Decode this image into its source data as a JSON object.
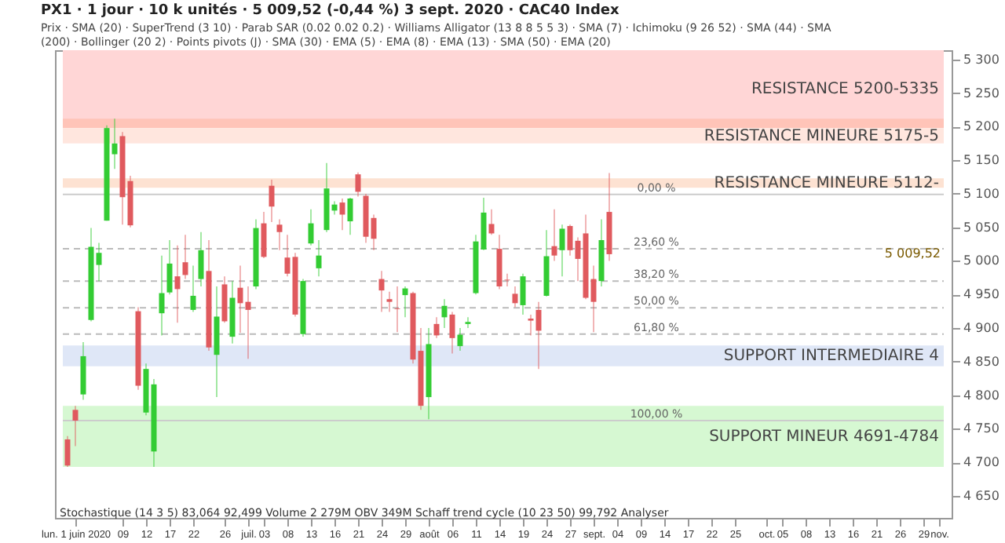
{
  "chart_data": {
    "type": "candlestick",
    "title": "PX1 · 1 jour · 10 k unités · 5 009,52 (-0,44 %) 3 sept. 2020 · CAC40 Index",
    "subtitle": "Prix · SMA (20) · SuperTrend (3 10) · Parab SAR (0.02 0.02 0.2) · Williams Alligator (13 8 8 5 5 3) · SMA (7) · Ichimoku (9 26 52) · SMA (44) · SMA (200) · Bollinger (20 2) · Points pivots (J) · SMA (30) · EMA (5) · EMA (8) · EMA (13) · SMA (50) · EMA (20)",
    "categories": [
      null,
      "lun. 1 juin 2020",
      null,
      null,
      null,
      null,
      null,
      "09",
      null,
      null,
      "12",
      null,
      null,
      "17",
      null,
      null,
      "22",
      null,
      null,
      null,
      "26",
      null,
      null,
      "juil.",
      null,
      "03",
      null,
      null,
      "08",
      null,
      null,
      "13",
      null,
      null,
      "16",
      null,
      null,
      "21",
      null,
      null,
      "24",
      null,
      null,
      "29",
      null,
      null,
      "août",
      null,
      null,
      "06",
      null,
      null,
      "11",
      null,
      null,
      "14",
      null,
      null,
      "19",
      null,
      null,
      "24",
      null,
      null,
      "27",
      null,
      null,
      "sept.",
      null,
      null,
      "04",
      null,
      null,
      "09",
      null,
      null,
      "14",
      null,
      null,
      "17",
      null,
      null,
      "22",
      null,
      null,
      "25",
      null,
      null,
      null,
      "oct.",
      null,
      "05",
      null,
      null,
      "08",
      null,
      null,
      "13",
      null,
      null,
      "16",
      null,
      null,
      "21",
      null,
      null,
      "26",
      null,
      null,
      "29",
      null,
      "nov."
    ],
    "ohlc": [
      [
        4734,
        4739,
        4693,
        4695
      ],
      [
        4778,
        4784,
        4724,
        4762
      ],
      [
        4801,
        4879,
        4793,
        4858
      ],
      [
        4912,
        5049,
        4910,
        5021
      ],
      [
        4994,
        5027,
        4970,
        5012
      ],
      [
        5060,
        5202,
        5060,
        5198
      ],
      [
        5159,
        5212,
        5137,
        5175
      ],
      [
        5186,
        5192,
        5054,
        5095
      ],
      [
        5119,
        5127,
        5050,
        5053
      ],
      [
        4925,
        4931,
        4808,
        4814
      ],
      [
        4774,
        4847,
        4770,
        4839
      ],
      [
        4716,
        4824,
        4693,
        4816
      ],
      [
        4922,
        5008,
        4889,
        4952
      ],
      [
        4953,
        5031,
        4950,
        4996
      ],
      [
        4977,
        5023,
        4908,
        4958
      ],
      [
        4998,
        5039,
        4973,
        4979
      ],
      [
        4927,
        4993,
        4924,
        4948
      ],
      [
        4973,
        5043,
        4962,
        5016
      ],
      [
        4985,
        5031,
        4866,
        4871
      ],
      [
        4860,
        4962,
        4797,
        4917
      ],
      [
        4965,
        4977,
        4908,
        4910
      ],
      [
        4887,
        4970,
        4877,
        4945
      ],
      [
        4960,
        4993,
        4893,
        4937
      ],
      [
        4939,
        4962,
        4854,
        4927
      ],
      [
        4962,
        5062,
        4958,
        5049
      ],
      [
        5056,
        5073,
        5004,
        5006
      ],
      [
        5112,
        5121,
        5058,
        5081
      ],
      [
        5054,
        5062,
        5016,
        5043
      ],
      [
        5005,
        5039,
        4977,
        4981
      ],
      [
        5006,
        5012,
        4917,
        4920
      ],
      [
        4891,
        4973,
        4887,
        4970
      ],
      [
        5026,
        5077,
        5023,
        5056
      ],
      [
        4989,
        5031,
        4977,
        5008
      ],
      [
        5046,
        5146,
        5043,
        5108
      ],
      [
        5075,
        5089,
        5069,
        5084
      ],
      [
        5087,
        5093,
        5046,
        5069
      ],
      [
        5059,
        5094,
        5039,
        5093
      ],
      [
        5129,
        5132,
        5096,
        5103
      ],
      [
        5097,
        5100,
        5027,
        5036
      ],
      [
        5064,
        5069,
        5016,
        5033
      ],
      [
        4973,
        4985,
        4924,
        4956
      ],
      [
        4943,
        4954,
        4924,
        4939
      ],
      [
        4929,
        4962,
        4894,
        4928
      ],
      [
        4949,
        4962,
        4916,
        4959
      ],
      [
        4952,
        4954,
        4847,
        4853
      ],
      [
        4866,
        4900,
        4778,
        4784
      ],
      [
        4797,
        4900,
        4764,
        4876
      ],
      [
        4906,
        4916,
        4885,
        4889
      ],
      [
        4916,
        4943,
        4900,
        4933
      ],
      [
        4920,
        4924,
        4862,
        4885
      ],
      [
        4873,
        4900,
        4866,
        4890
      ],
      [
        4906,
        4916,
        4900,
        4909
      ],
      [
        4952,
        5039,
        4950,
        5029
      ],
      [
        5017,
        5094,
        5016,
        5072
      ],
      [
        5055,
        5077,
        5039,
        5041
      ],
      [
        5018,
        5039,
        4958,
        4962
      ],
      [
        4972,
        4981,
        4962,
        4971
      ],
      [
        4951,
        4962,
        4931,
        4937
      ],
      [
        4934,
        4981,
        4920,
        4977
      ],
      [
        4914,
        4920,
        4889,
        4911
      ],
      [
        4927,
        4939,
        4839,
        4896
      ],
      [
        4948,
        5046,
        4947,
        5007
      ],
      [
        5022,
        5077,
        5000,
        5008
      ],
      [
        5016,
        5054,
        4977,
        5048
      ],
      [
        5052,
        5054,
        5008,
        5016
      ],
      [
        5030,
        5035,
        4970,
        5003
      ],
      [
        5041,
        5069,
        4943,
        4945
      ],
      [
        4973,
        4993,
        4894,
        4939
      ],
      [
        4970,
        5062,
        4962,
        5031
      ],
      [
        5073,
        5131,
        5000,
        5010
      ],
      null,
      null,
      null,
      null,
      null,
      null,
      null,
      null,
      null,
      null,
      null,
      null,
      null,
      null,
      null,
      null,
      null,
      null,
      null,
      null,
      null,
      null,
      null,
      null,
      null,
      null,
      null,
      null,
      null,
      null,
      null,
      null,
      null,
      null,
      null,
      null,
      null,
      null,
      null,
      null,
      null,
      null
    ],
    "colors": [
      "#e05a5e",
      "#e05a5e",
      "#33cc33",
      "#33cc33",
      "#33cc33",
      "#33cc33",
      "#33cc33",
      "#e05a5e",
      "#e05a5e",
      "#e05a5e",
      "#33cc33",
      "#33cc33",
      "#33cc33",
      "#33cc33",
      "#e05a5e",
      "#e05a5e",
      "#33cc33",
      "#33cc33",
      "#e05a5e",
      "#33cc33",
      "#e05a5e",
      "#33cc33",
      "#e05a5e",
      "#e05a5e",
      "#33cc33",
      "#e05a5e",
      "#e05a5e",
      "#e05a5e",
      "#e05a5e",
      "#e05a5e",
      "#33cc33",
      "#33cc33",
      "#33cc33",
      "#33cc33",
      "#33cc33",
      "#e05a5e",
      "#33cc33",
      "#e05a5e",
      "#e05a5e",
      "#e05a5e",
      "#e05a5e",
      "#e05a5e",
      "#e05a5e",
      "#33cc33",
      "#e05a5e",
      "#e05a5e",
      "#33cc33",
      "#e05a5e",
      "#33cc33",
      "#e05a5e",
      "#33cc33",
      "#33cc33",
      "#33cc33",
      "#33cc33",
      "#e05a5e",
      "#e05a5e",
      "#e05a5e",
      "#e05a5e",
      "#33cc33",
      "#e05a5e",
      "#e05a5e",
      "#33cc33",
      "#e05a5e",
      "#33cc33",
      "#e05a5e",
      "#e05a5e",
      "#e05a5e",
      "#e05a5e",
      "#33cc33",
      "#e05a5e",
      null,
      null,
      null,
      null,
      null,
      null,
      null,
      null,
      null,
      null,
      null,
      null,
      null,
      null,
      null,
      null,
      null,
      null,
      null,
      null,
      null,
      null,
      null,
      null,
      null,
      null,
      null,
      null,
      null,
      null,
      null,
      null,
      null,
      null,
      null,
      null,
      null,
      null,
      null,
      null,
      null,
      null
    ],
    "ylim": [
      4617,
      5314
    ],
    "yticks": [
      {
        "value": 4650,
        "label": "4 650"
      },
      {
        "value": 4700,
        "label": "4 700"
      },
      {
        "value": 4750,
        "label": "4 750"
      },
      {
        "value": 4800,
        "label": "4 800"
      },
      {
        "value": 4850,
        "label": "4 850"
      },
      {
        "value": 4900,
        "label": "4 900"
      },
      {
        "value": 4950,
        "label": "4 950"
      },
      {
        "value": 5000,
        "label": "5 000"
      },
      {
        "value": 5050,
        "label": "5 050"
      },
      {
        "value": 5100,
        "label": "5 100"
      },
      {
        "value": 5150,
        "label": "5 150"
      },
      {
        "value": 5200,
        "label": "5 200"
      },
      {
        "value": 5250,
        "label": "5 250"
      },
      {
        "value": 5300,
        "label": "5 300"
      }
    ],
    "bands": [
      {
        "axis": "y",
        "from": 5200,
        "to": 5314,
        "label": "RESISTANCE 5200-5335",
        "color": "#ffd6d6"
      },
      {
        "axis": "y",
        "from": 5198,
        "to": 5212,
        "label": null,
        "color": "#ffc4b8"
      },
      {
        "axis": "y",
        "from": 5175,
        "to": 5198,
        "label": "RESISTANCE MINEURE 5175-5",
        "color": "#ffe6de"
      },
      {
        "axis": "y",
        "from": 5109,
        "to": 5123,
        "label": "RESISTANCE MINEURE 5112-",
        "color": "#fde2d2"
      },
      {
        "axis": "y",
        "from": 4843,
        "to": 4874,
        "label": "SUPPORT INTERMEDIAIRE 4",
        "color": "#dfe7f7"
      },
      {
        "axis": "y",
        "from": 4693,
        "to": 4784,
        "label": "SUPPORT MINEUR 4691-4784",
        "color": "#d6f8d2"
      }
    ],
    "ref_lines": [
      {
        "axis": "y",
        "value": 5099,
        "line_style": "solid",
        "color": "#cccccc"
      },
      {
        "axis": "y",
        "value": 5018,
        "line_style": "dashed",
        "color": "#bbbbbb"
      },
      {
        "axis": "y",
        "value": 4970,
        "line_style": "dashed",
        "color": "#bbbbbb"
      },
      {
        "axis": "y",
        "value": 4930,
        "line_style": "dashed",
        "color": "#bbbbbb"
      },
      {
        "axis": "y",
        "value": 4891,
        "line_style": "dashed",
        "color": "#bbbbbb"
      },
      {
        "axis": "y",
        "value": 4762,
        "line_style": "solid",
        "color": "#cccccc"
      }
    ],
    "annotations": [
      {
        "text": "5 009,52",
        "y": 5009.52
      },
      {
        "text": "0,00 %",
        "y": 5099
      },
      {
        "text": "23,60 %",
        "y": 5018
      },
      {
        "text": "38,20 %",
        "y": 4970
      },
      {
        "text": "50,00 %",
        "y": 4930
      },
      {
        "text": "61,80 %",
        "y": 4891
      },
      {
        "text": "100,00 %",
        "y": 4762
      },
      "Stochastique (14 3 5) 83,064 92,499",
      "Volume 2 279M",
      "OBV 349M",
      "Schaff trend cycle (10 23 50) 99,792",
      "Analyser"
    ],
    "grid": false
  }
}
